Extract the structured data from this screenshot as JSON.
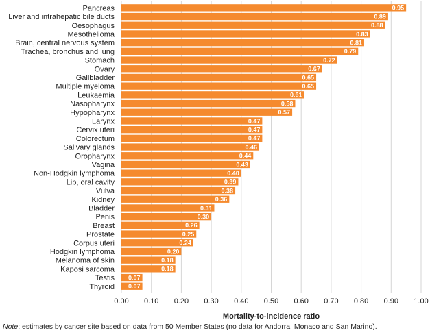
{
  "chart_data": {
    "type": "bar",
    "orientation": "horizontal",
    "categories": [
      "Pancreas",
      "Liver and intrahepatic bile ducts",
      "Oesophagus",
      "Mesothelioma",
      "Brain, central nervous system",
      "Trachea, bronchus and lung",
      "Stomach",
      "Ovary",
      "Gallbladder",
      "Multiple myeloma",
      "Leukaemia",
      "Nasopharynx",
      "Hypopharynx",
      "Larynx",
      "Cervix uteri",
      "Colorectum",
      "Salivary glands",
      "Oropharynx",
      "Vagina",
      "Non-Hodgkin lymphoma",
      "Lip, oral cavity",
      "Vulva",
      "Kidney",
      "Bladder",
      "Penis",
      "Breast",
      "Prostate",
      "Corpus uteri",
      "Hodgkin lymphoma",
      "Melanoma of skin",
      "Kaposi sarcoma",
      "Testis",
      "Thyroid"
    ],
    "values": [
      0.95,
      0.89,
      0.88,
      0.83,
      0.81,
      0.79,
      0.72,
      0.67,
      0.65,
      0.65,
      0.61,
      0.58,
      0.57,
      0.47,
      0.47,
      0.47,
      0.46,
      0.44,
      0.43,
      0.4,
      0.39,
      0.38,
      0.36,
      0.31,
      0.3,
      0.26,
      0.25,
      0.24,
      0.2,
      0.18,
      0.18,
      0.07,
      0.07
    ],
    "value_labels": [
      "0.95",
      "0.89",
      "0.88",
      "0.83",
      "0.81",
      "0.79",
      "0.72",
      "0.67",
      "0.65",
      "0.65",
      "0.61",
      "0.58",
      "0.57",
      "0.47",
      "0.47",
      "0.47",
      "0.46",
      "0.44",
      "0.43",
      "0.40",
      "0.39",
      "0.38",
      "0.36",
      "0.31",
      "0.30",
      "0.26",
      "0.25",
      "0.24",
      "0.20",
      "0.18",
      "0.18",
      "0.07",
      "0.07"
    ],
    "xlabel": "Mortality-to-incidence ratio",
    "xlim": [
      0,
      1.0
    ],
    "xticks": [
      "0.00",
      "0.10",
      "0.20",
      "0.30",
      "0.40",
      "0.50",
      "0.60",
      "0.70",
      "0.80",
      "0.90",
      "1.00"
    ],
    "grid": "vertical",
    "bar_color": "#F58A2E",
    "grid_color": "#D6D6D6"
  },
  "note": {
    "label": "Note",
    "text": ":  estimates by cancer site based on data from 50 Member States (no data for Andorra, Monaco and San Marino)."
  }
}
